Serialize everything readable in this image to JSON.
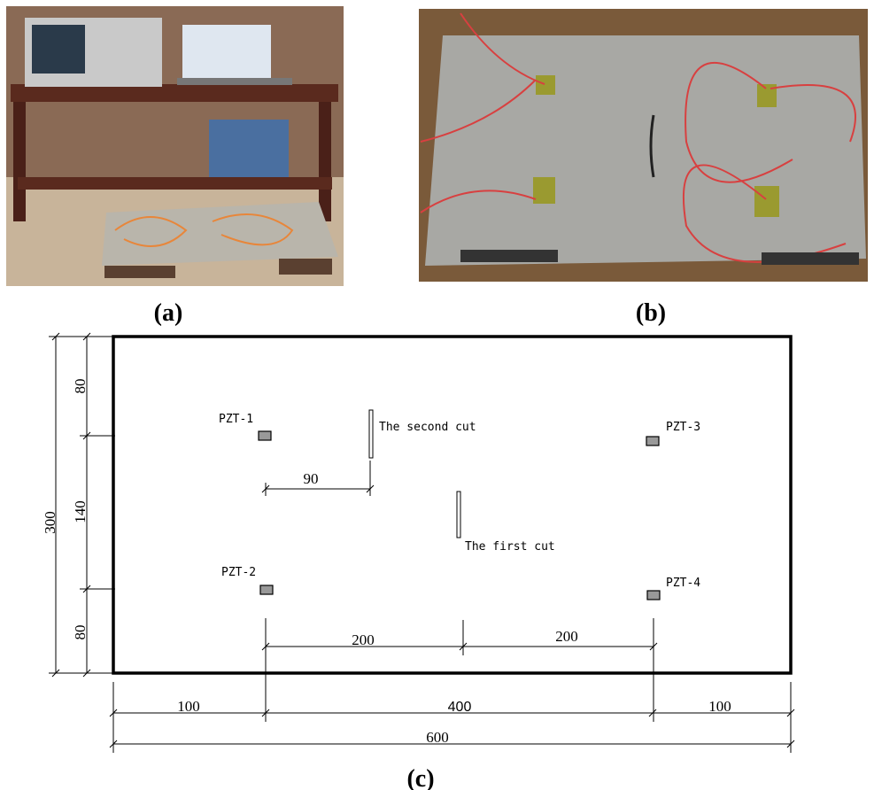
{
  "panels": {
    "a": "(a)",
    "b": "(b)",
    "c": "(c)"
  },
  "sensors": [
    "PZT-1",
    "PZT-2",
    "PZT-3",
    "PZT-4"
  ],
  "cuts": {
    "second": "The second cut",
    "first": "The first cut"
  },
  "dimensions": {
    "height": 300,
    "top": 80,
    "middle": 140,
    "bottom": 80,
    "cut_offset": 90,
    "left_span": 200,
    "right_span": 200,
    "left_margin": 100,
    "center": 400,
    "right_margin": 100,
    "total": 600
  }
}
